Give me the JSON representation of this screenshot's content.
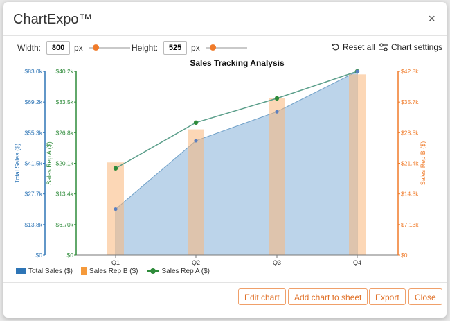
{
  "dialog": {
    "title": "ChartExpo™",
    "close_symbol": "×"
  },
  "controls": {
    "width_label": "Width:",
    "width_value": "800",
    "width_unit": "px",
    "height_label": "Height:",
    "height_value": "525",
    "height_unit": "px",
    "reset_label": "Reset all",
    "settings_label": "Chart settings"
  },
  "chart_data": {
    "type": "bar",
    "title": "Sales Tracking Analysis",
    "categories": [
      "Q1",
      "Q2",
      "Q3",
      "Q4"
    ],
    "series": [
      {
        "name": "Total Sales ($)",
        "kind": "area",
        "axis": "left-outer",
        "values": [
          20800,
          51700,
          64800,
          83000
        ]
      },
      {
        "name": "Sales Rep B ($)",
        "kind": "bar",
        "axis": "right",
        "values": [
          21600,
          29300,
          36500,
          42100
        ]
      },
      {
        "name": "Sales Rep A ($)",
        "kind": "line",
        "axis": "left-inner",
        "values": [
          19000,
          29000,
          34300,
          40200
        ]
      }
    ],
    "axes": {
      "total": {
        "label": "Total Sales ($)",
        "range": [
          0,
          83000
        ],
        "ticks": [
          "$0",
          "$13.8k",
          "$27.7k",
          "$41.5k",
          "$55.3k",
          "$69.2k",
          "$83.0k"
        ],
        "color": "#2e75b6"
      },
      "repA": {
        "label": "Sales Rep A ($)",
        "range": [
          0,
          40200
        ],
        "ticks": [
          "$0",
          "$6.70k",
          "$13.4k",
          "$20.1k",
          "$26.8k",
          "$33.5k",
          "$40.2k"
        ],
        "color": "#2e8b3a"
      },
      "repB": {
        "label": "Sales Rep B ($)",
        "range": [
          0,
          42800
        ],
        "ticks": [
          "$0",
          "$7.13k",
          "$14.3k",
          "$21.4k",
          "$28.5k",
          "$35.7k",
          "$42.8k"
        ],
        "color": "#f07b2a"
      }
    },
    "grid": false,
    "legend_position": "bottom-left"
  },
  "footer": {
    "edit": "Edit chart",
    "add": "Add chart to sheet",
    "export": "Export",
    "close": "Close"
  }
}
